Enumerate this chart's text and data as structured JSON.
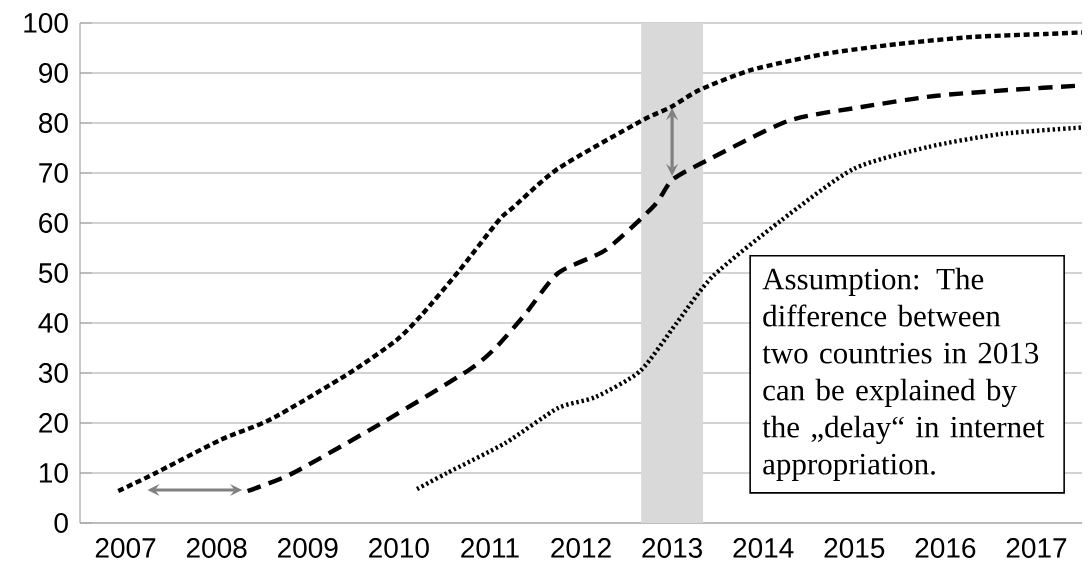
{
  "chart_data": {
    "type": "line",
    "xlim": [
      2006.5,
      2017.5
    ],
    "ylim": [
      0,
      100
    ],
    "xticks": [
      2007,
      2008,
      2009,
      2010,
      2011,
      2012,
      2013,
      2014,
      2015,
      2016,
      2017
    ],
    "yticks": [
      0,
      10,
      20,
      30,
      40,
      50,
      60,
      70,
      80,
      90,
      100
    ],
    "grid": "y",
    "marker": "none",
    "series": [
      {
        "color": "#000000",
        "line_style": "dashed",
        "x": [
          2006.92,
          2007.31,
          2008.04,
          2008.6,
          2009.45,
          2009.97,
          2010.25,
          2010.66,
          2011.1,
          2011.26,
          2011.75,
          2012.66,
          2012.99,
          2013.3,
          2013.87,
          2014.67,
          2015.48,
          2016.29,
          2017.1,
          2017.5
        ],
        "values": [
          6.4,
          9.8,
          16.6,
          20.8,
          29.9,
          36.5,
          41.6,
          50.4,
          60.6,
          63.2,
          70.9,
          80.4,
          83.2,
          86.6,
          90.6,
          93.8,
          95.8,
          97.2,
          97.8,
          98.1
        ]
      },
      {
        "color": "#000000",
        "line_style": "dashed",
        "x": [
          2008.34,
          2008.84,
          2009.85,
          2010.77,
          2011.06,
          2011.38,
          2011.75,
          2012.27,
          2012.8,
          2013.0,
          2013.35,
          2014.27,
          2015.08,
          2015.88,
          2016.7,
          2017.5
        ],
        "values": [
          6.4,
          10,
          20.4,
          30.6,
          35,
          41.6,
          50,
          54.6,
          63.4,
          68.6,
          72.2,
          80.4,
          83.2,
          85.4,
          86.6,
          87.5
        ]
      },
      {
        "color": "#000000",
        "line_style": "dotted",
        "x": [
          2010.2,
          2010.53,
          2011.17,
          2011.75,
          2012.16,
          2012.65,
          2013.05,
          2013.45,
          2014.19,
          2014.99,
          2015.81,
          2016.61,
          2017.5
        ],
        "values": [
          6.8,
          10,
          16,
          23,
          25.2,
          30.4,
          40,
          49.4,
          60.4,
          70.8,
          75.2,
          77.8,
          79.1
        ]
      }
    ],
    "bands": [
      {
        "axis": "x",
        "from": 2012.66,
        "to": 2013.34,
        "color": "#d9d9d9"
      }
    ],
    "annotations": [
      "Assumption: The difference between two countries in 2013 can be explained by the „delay“ in internet appropriation."
    ]
  }
}
